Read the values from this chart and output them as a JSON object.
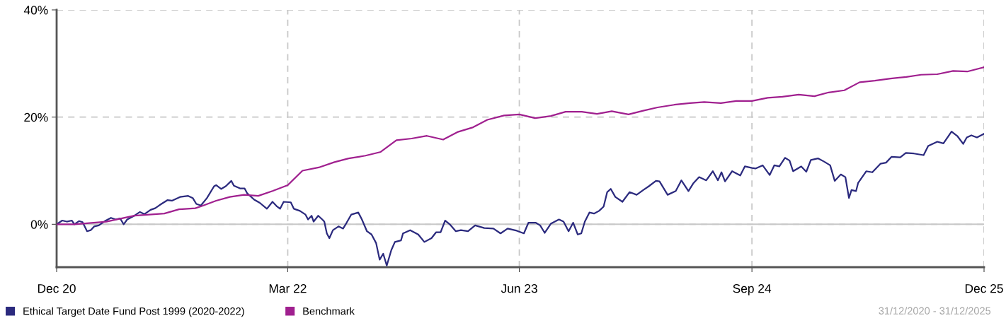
{
  "chart_data": {
    "type": "line",
    "ylim": [
      -8,
      40
    ],
    "yticks": [
      {
        "value": 0,
        "label": "0%"
      },
      {
        "value": 20,
        "label": "20%"
      },
      {
        "value": 40,
        "label": "40%"
      }
    ],
    "xlim": [
      "2020-12-31",
      "2025-12-31"
    ],
    "xticks": [
      {
        "value": "2020-12-31",
        "label": "Dec 20"
      },
      {
        "value": "2022-03-31",
        "label": "Mar 22"
      },
      {
        "value": "2023-06-30",
        "label": "Jun 23"
      },
      {
        "value": "2024-09-30",
        "label": "Sep 24"
      },
      {
        "value": "2025-12-31",
        "label": "Dec 25"
      }
    ],
    "grid": true,
    "legend": "bottom left",
    "ref_lines": [
      {
        "axis": "y",
        "value": 0,
        "color": "#c8c8c8",
        "line_style": "solid"
      }
    ],
    "annotations": [
      "31/12/2020 - 31/12/2025"
    ],
    "series": [
      {
        "name": "Ethical Target Date Fund Post 1999 (2020-2022)",
        "color": "#2b2a7e",
        "x": [
          "2020-12-31",
          "2021-01-11",
          "2021-01-20",
          "2021-01-30",
          "2021-02-04",
          "2021-02-13",
          "2021-02-20",
          "2021-03-01",
          "2021-03-08",
          "2021-03-15",
          "2021-03-24",
          "2021-04-05",
          "2021-04-17",
          "2021-04-26",
          "2021-05-05",
          "2021-05-12",
          "2021-05-19",
          "2021-06-02",
          "2021-06-13",
          "2021-06-22",
          "2021-07-04",
          "2021-07-13",
          "2021-07-22",
          "2021-08-06",
          "2021-08-15",
          "2021-08-31",
          "2021-09-16",
          "2021-09-25",
          "2021-10-02",
          "2021-10-11",
          "2021-10-23",
          "2021-11-06",
          "2021-11-10",
          "2021-11-20",
          "2021-11-29",
          "2021-12-10",
          "2021-12-15",
          "2021-12-27",
          "2022-01-05",
          "2022-01-10",
          "2022-01-24",
          "2022-02-04",
          "2022-02-18",
          "2022-03-01",
          "2022-03-09",
          "2022-03-16",
          "2022-03-23",
          "2022-04-06",
          "2022-04-12",
          "2022-04-24",
          "2022-05-05",
          "2022-05-10",
          "2022-05-17",
          "2022-05-21",
          "2022-05-30",
          "2022-06-07",
          "2022-06-11",
          "2022-06-16",
          "2022-06-21",
          "2022-06-28",
          "2022-07-09",
          "2022-07-18",
          "2022-07-25",
          "2022-08-03",
          "2022-08-17",
          "2022-08-24",
          "2022-09-03",
          "2022-09-12",
          "2022-09-21",
          "2022-09-28",
          "2022-10-05",
          "2022-10-12",
          "2022-10-21",
          "2022-10-28",
          "2022-11-09",
          "2022-11-13",
          "2022-11-27",
          "2022-12-13",
          "2022-12-25",
          "2023-01-08",
          "2023-01-17",
          "2023-01-26",
          "2023-02-04",
          "2023-02-13",
          "2023-02-25",
          "2023-03-07",
          "2023-03-21",
          "2023-04-04",
          "2023-04-22",
          "2023-05-10",
          "2023-05-24",
          "2023-06-07",
          "2023-06-25",
          "2023-07-09",
          "2023-07-18",
          "2023-08-01",
          "2023-08-10",
          "2023-08-19",
          "2023-08-31",
          "2023-09-16",
          "2023-09-25",
          "2023-10-05",
          "2023-10-14",
          "2023-10-23",
          "2023-10-30",
          "2023-11-06",
          "2023-11-15",
          "2023-11-24",
          "2023-12-04",
          "2023-12-13",
          "2023-12-20",
          "2023-12-27",
          "2024-01-05",
          "2024-01-19",
          "2024-02-02",
          "2024-02-16",
          "2024-02-29",
          "2024-03-11",
          "2024-03-25",
          "2024-04-01",
          "2024-04-17",
          "2024-05-03",
          "2024-05-14",
          "2024-05-28",
          "2024-06-07",
          "2024-06-18",
          "2024-07-02",
          "2024-07-15",
          "2024-07-25",
          "2024-08-01",
          "2024-08-08",
          "2024-08-22",
          "2024-09-07",
          "2024-09-16",
          "2024-09-30",
          "2024-10-07",
          "2024-10-21",
          "2024-11-04",
          "2024-11-13",
          "2024-11-23",
          "2024-12-04",
          "2024-12-13",
          "2024-12-20",
          "2025-01-05",
          "2025-01-15",
          "2025-01-24",
          "2025-02-07",
          "2025-02-19",
          "2025-03-03",
          "2025-03-12",
          "2025-03-24",
          "2025-04-02",
          "2025-04-09",
          "2025-04-14",
          "2025-04-23",
          "2025-04-27",
          "2025-05-13",
          "2025-05-25",
          "2025-06-10",
          "2025-06-21",
          "2025-07-02",
          "2025-07-19",
          "2025-07-30",
          "2025-08-15",
          "2025-09-03",
          "2025-09-12",
          "2025-09-30",
          "2025-10-12",
          "2025-10-28",
          "2025-11-09",
          "2025-11-20",
          "2025-11-27",
          "2025-12-06",
          "2025-12-17",
          "2025-12-31"
        ],
        "values": [
          0.0,
          0.7,
          0.5,
          0.7,
          0.0,
          0.6,
          0.4,
          -1.3,
          -1.1,
          -0.4,
          -0.2,
          0.6,
          1.2,
          0.9,
          1.1,
          0.0,
          0.9,
          1.6,
          2.3,
          1.9,
          2.7,
          3.0,
          3.6,
          4.5,
          4.4,
          5.1,
          5.3,
          4.9,
          3.8,
          3.5,
          4.9,
          7.1,
          7.3,
          6.6,
          7.1,
          8.1,
          7.2,
          6.7,
          6.7,
          5.8,
          4.6,
          4.0,
          2.9,
          4.2,
          3.4,
          2.9,
          4.2,
          4.1,
          2.9,
          2.5,
          1.8,
          0.9,
          1.6,
          0.5,
          1.6,
          0.9,
          0.5,
          -1.7,
          -2.6,
          -1.1,
          -0.4,
          -0.8,
          0.3,
          1.8,
          2.2,
          0.9,
          -1.3,
          -1.9,
          -3.5,
          -6.6,
          -5.5,
          -7.7,
          -4.8,
          -3.3,
          -3.0,
          -1.7,
          -1.1,
          -1.9,
          -3.3,
          -2.6,
          -1.5,
          -1.5,
          0.7,
          0.0,
          -1.3,
          -1.1,
          -1.3,
          -0.2,
          -0.7,
          -0.8,
          -1.7,
          -0.8,
          -1.2,
          -1.7,
          0.3,
          0.3,
          -0.2,
          -1.6,
          0.1,
          0.9,
          0.5,
          -1.3,
          0.3,
          -1.9,
          -1.7,
          0.5,
          2.2,
          2.0,
          2.5,
          3.3,
          6.0,
          6.6,
          5.1,
          4.2,
          6.0,
          5.5,
          6.4,
          7.1,
          8.1,
          8.0,
          5.5,
          6.2,
          8.2,
          6.2,
          7.7,
          8.8,
          8.2,
          9.9,
          8.2,
          9.7,
          8.0,
          9.9,
          9.1,
          10.8,
          10.5,
          10.4,
          11.0,
          9.2,
          11.0,
          10.8,
          12.4,
          11.9,
          9.9,
          10.8,
          9.8,
          12.0,
          12.3,
          11.7,
          11.0,
          8.1,
          9.3,
          8.8,
          4.9,
          6.4,
          6.2,
          7.7,
          9.9,
          9.7,
          11.3,
          11.5,
          12.6,
          12.5,
          13.3,
          13.2,
          12.9,
          14.6,
          15.4,
          15.1,
          17.3,
          16.4,
          15.0,
          16.2,
          16.6,
          16.2,
          16.9
        ]
      },
      {
        "name": "Benchmark",
        "color": "#a0208f",
        "x": [
          "2020-12-31",
          "2021-02-04",
          "2021-04-08",
          "2021-06-02",
          "2021-07-31",
          "2021-08-29",
          "2021-09-30",
          "2021-10-13",
          "2021-11-10",
          "2021-12-07",
          "2022-01-04",
          "2022-02-01",
          "2022-03-01",
          "2022-03-31",
          "2022-04-29",
          "2022-05-31",
          "2022-07-01",
          "2022-07-29",
          "2022-08-31",
          "2022-09-30",
          "2022-10-31",
          "2022-11-30",
          "2022-12-30",
          "2023-01-31",
          "2023-02-28",
          "2023-03-31",
          "2023-04-28",
          "2023-05-31",
          "2023-06-30",
          "2023-07-31",
          "2023-08-31",
          "2023-09-29",
          "2023-10-31",
          "2023-11-30",
          "2023-12-29",
          "2024-01-31",
          "2024-02-29",
          "2024-03-28",
          "2024-04-30",
          "2024-05-31",
          "2024-06-28",
          "2024-07-31",
          "2024-08-30",
          "2024-09-30",
          "2024-10-31",
          "2024-11-29",
          "2024-12-31",
          "2025-01-31",
          "2025-02-28",
          "2025-03-31",
          "2025-04-30",
          "2025-05-30",
          "2025-06-30",
          "2025-07-31",
          "2025-08-29",
          "2025-09-30",
          "2025-10-31",
          "2025-11-28",
          "2025-12-31"
        ],
        "values": [
          0.0,
          0.0,
          0.5,
          1.6,
          2.0,
          2.8,
          3.0,
          3.4,
          4.4,
          5.1,
          5.5,
          5.3,
          6.2,
          7.3,
          10.0,
          10.6,
          11.6,
          12.3,
          12.8,
          13.5,
          15.7,
          16.0,
          16.5,
          15.8,
          17.2,
          18.1,
          19.5,
          20.3,
          20.5,
          19.8,
          20.2,
          21.0,
          21.0,
          20.6,
          21.1,
          20.5,
          21.2,
          21.8,
          22.3,
          22.6,
          22.8,
          22.6,
          23.0,
          23.0,
          23.6,
          23.8,
          24.2,
          23.9,
          24.6,
          25.0,
          26.5,
          26.8,
          27.2,
          27.5,
          27.9,
          28.0,
          28.6,
          28.5,
          29.3
        ]
      }
    ]
  }
}
